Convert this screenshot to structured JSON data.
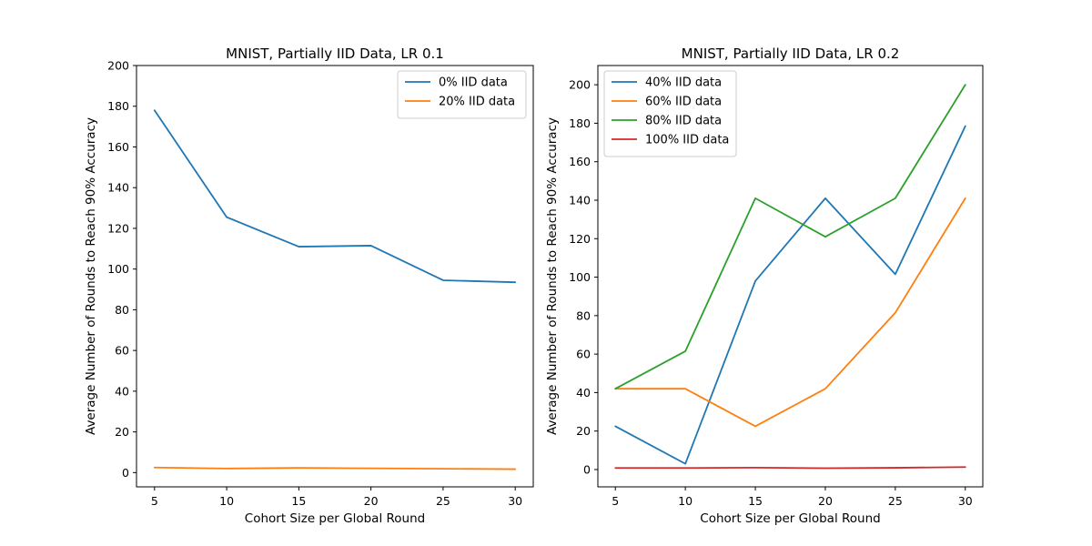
{
  "chart_data": [
    {
      "type": "line",
      "title": "MNIST, Partially IID Data, LR 0.1",
      "xlabel": "Cohort Size per Global Round",
      "ylabel": "Average Number of Rounds to Reach 90% Accuracy",
      "x": [
        5,
        10,
        15,
        20,
        25,
        30
      ],
      "xticks": [
        "5",
        "10",
        "15",
        "20",
        "25",
        "30"
      ],
      "yticks": [
        "0",
        "20",
        "40",
        "60",
        "80",
        "100",
        "120",
        "140",
        "160",
        "180",
        "200"
      ],
      "ylim": [
        -7,
        200
      ],
      "legend_position": "upper right",
      "series": [
        {
          "name": "0% IID data",
          "color": "#1f77b4",
          "values": [
            178,
            125.5,
            111,
            111.5,
            94.5,
            93.5
          ]
        },
        {
          "name": "20% IID data",
          "color": "#ff7f0e",
          "values": [
            2.5,
            2,
            2.3,
            2.1,
            1.9,
            1.7
          ]
        }
      ]
    },
    {
      "type": "line",
      "title": "MNIST, Partially IID Data, LR 0.2",
      "xlabel": "Cohort Size per Global Round",
      "ylabel": "Average Number of Rounds to Reach 90% Accuracy",
      "x": [
        5,
        10,
        15,
        20,
        25,
        30
      ],
      "xticks": [
        "5",
        "10",
        "15",
        "20",
        "25",
        "30"
      ],
      "yticks": [
        "0",
        "20",
        "40",
        "60",
        "80",
        "100",
        "120",
        "140",
        "160",
        "180",
        "200"
      ],
      "ylim": [
        -9,
        210
      ],
      "legend_position": "upper left",
      "series": [
        {
          "name": "40% IID data",
          "color": "#1f77b4",
          "values": [
            22.5,
            3,
            98,
            141,
            101.5,
            178.5
          ]
        },
        {
          "name": "60% IID data",
          "color": "#ff7f0e",
          "values": [
            42,
            42,
            22.5,
            42,
            81.5,
            141
          ]
        },
        {
          "name": "80% IID data",
          "color": "#2ca02c",
          "values": [
            42,
            61.5,
            141,
            121,
            141,
            200
          ]
        },
        {
          "name": "100% IID data",
          "color": "#d62728",
          "values": [
            0.8,
            0.8,
            1,
            0.7,
            0.9,
            1.3
          ]
        }
      ]
    }
  ]
}
